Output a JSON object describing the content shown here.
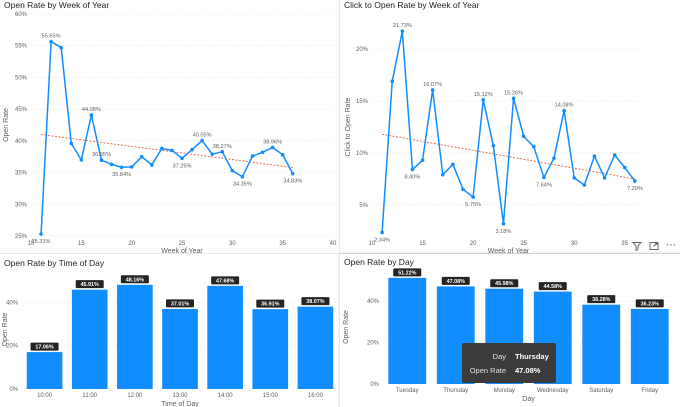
{
  "colors": {
    "accent": "#118dff",
    "trend": "#e8704c",
    "label_bg": "#252423",
    "grid": "#e6e6e6"
  },
  "toolbar": {
    "filter_icon": "filter-icon",
    "focus_icon": "focus-mode-icon",
    "more_icon": "more-options-icon",
    "more_glyph": "⋯"
  },
  "tooltip": {
    "day_key": "Day",
    "day_value": "Thursday",
    "rate_key": "Open Rate",
    "rate_value": "47.08%"
  },
  "chart_data": [
    {
      "type": "line",
      "title": "Open Rate by Week of Year",
      "xlabel": "Week of Year",
      "ylabel": "Open Rate",
      "xlim": [
        10,
        40
      ],
      "ylim": [
        25,
        60
      ],
      "x_ticks": [
        10,
        15,
        20,
        25,
        30,
        35,
        40
      ],
      "y_ticks": [
        25,
        30,
        35,
        40,
        45,
        50,
        55,
        60
      ],
      "unit": "%",
      "trend_line": [
        [
          11,
          41
        ],
        [
          36,
          35.8
        ]
      ],
      "series": [
        {
          "x": [
            11,
            12,
            13,
            14,
            15,
            16,
            17,
            18,
            19,
            20,
            21,
            22,
            23,
            24,
            25,
            26,
            27,
            28,
            29,
            30,
            31,
            32,
            33,
            34,
            35,
            36
          ],
          "values": [
            25.31,
            55.65,
            54.7,
            39.6,
            37.0,
            44.08,
            36.95,
            36.3,
            35.84,
            35.9,
            37.5,
            36.2,
            38.8,
            38.5,
            37.25,
            38.6,
            40.05,
            37.9,
            38.27,
            35.3,
            34.35,
            37.6,
            38.2,
            38.96,
            37.8,
            34.83
          ],
          "labels": {
            "11": "25.31%",
            "12": "55.65%",
            "16": "44.08%",
            "17": "36.95%",
            "19": "35.84%",
            "25": "37.25%",
            "27": "40.05%",
            "29": "38.27%",
            "31": "34.35%",
            "34": "38.96%",
            "36": "34.83%"
          }
        }
      ]
    },
    {
      "type": "line",
      "title": "Click to Open Rate by Week of Year",
      "xlabel": "Week of Year",
      "ylabel": "Click to Open Rate",
      "xlim": [
        10,
        37
      ],
      "ylim": [
        2,
        23
      ],
      "x_ticks": [
        10,
        15,
        20,
        25,
        30,
        35
      ],
      "y_ticks": [
        5,
        10,
        15,
        20
      ],
      "unit": "%",
      "trend_line": [
        [
          11,
          11.8
        ],
        [
          36,
          7.5
        ]
      ],
      "series": [
        {
          "x": [
            11,
            12,
            13,
            14,
            15,
            16,
            17,
            18,
            19,
            20,
            21,
            22,
            23,
            24,
            25,
            26,
            27,
            28,
            29,
            30,
            31,
            32,
            33,
            34,
            35,
            36
          ],
          "values": [
            2.34,
            16.9,
            21.73,
            8.4,
            9.3,
            16.07,
            7.9,
            8.9,
            6.5,
            5.75,
            15.12,
            10.7,
            3.18,
            15.26,
            11.6,
            10.6,
            7.64,
            9.5,
            14.08,
            7.6,
            6.9,
            9.7,
            7.6,
            9.8,
            8.6,
            7.29
          ],
          "labels": {
            "11": "2.34%",
            "13": "21.73%",
            "14": "8.40%",
            "16": "16.07%",
            "20": "5.75%",
            "21": "15.12%",
            "23": "3.18%",
            "24": "15.26%",
            "27": "7.64%",
            "29": "14.08%",
            "36": "7.29%"
          }
        }
      ]
    },
    {
      "type": "bar",
      "title": "Open Rate by Time of Day",
      "xlabel": "Time of Day",
      "ylabel": "Open Rate",
      "ylim": [
        0,
        55
      ],
      "y_ticks": [
        0,
        20,
        40
      ],
      "unit": "%",
      "categories": [
        "10:00",
        "11:00",
        "12:00",
        "13:00",
        "14:00",
        "15:00",
        "16:00"
      ],
      "values": [
        17.06,
        45.91,
        48.16,
        37.01,
        47.68,
        36.91,
        38.07
      ],
      "value_labels": [
        "17.06%",
        "45.91%",
        "48.16%",
        "37.01%",
        "47.68%",
        "36.91%",
        "38.07%"
      ]
    },
    {
      "type": "bar",
      "title": "Open Rate by Day",
      "xlabel": "Day",
      "ylabel": "Open Rate",
      "ylim": [
        0,
        55
      ],
      "y_ticks": [
        0,
        20,
        40
      ],
      "unit": "%",
      "categories": [
        "Tuesday",
        "Thursday",
        "Monday",
        "Wednesday",
        "Saturday",
        "Friday"
      ],
      "values": [
        51.22,
        47.08,
        45.98,
        44.58,
        38.28,
        36.23
      ],
      "value_labels": [
        "51.22%",
        "47.08%",
        "45.98%",
        "44.58%",
        "38.28%",
        "36.23%"
      ]
    }
  ]
}
